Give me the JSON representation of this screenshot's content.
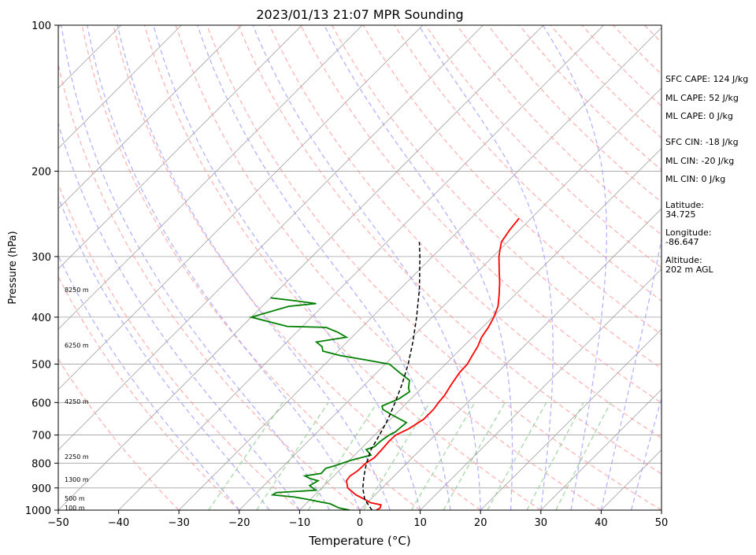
{
  "chart_data": {
    "type": "line",
    "title": "2023/01/13 21:07 MPR Sounding",
    "xlabel": "Temperature (°C)",
    "ylabel": "Pressure (hPa)",
    "xlim": [
      -50,
      50
    ],
    "ylim": [
      1000,
      100
    ],
    "y_scale": "log",
    "x_ticks": [
      -50,
      -40,
      -30,
      -20,
      -10,
      0,
      10,
      20,
      30,
      40,
      50
    ],
    "x_tick_labels": [
      "−50",
      "−40",
      "−30",
      "−20",
      "−10",
      "0",
      "10",
      "20",
      "30",
      "40",
      "50"
    ],
    "y_ticks": [
      100,
      200,
      300,
      400,
      500,
      600,
      700,
      800,
      900,
      1000
    ],
    "y_tick_labels": [
      "100",
      "200",
      "300",
      "400",
      "500",
      "600",
      "700",
      "800",
      "900",
      "1000"
    ],
    "grid": true,
    "series": [
      {
        "kind": "temperature",
        "color": "#ff0000",
        "pressure": [
          1000,
          990,
          975,
          965,
          950,
          930,
          900,
          870,
          850,
          830,
          800,
          780,
          750,
          720,
          700,
          680,
          650,
          620,
          600,
          580,
          550,
          520,
          500,
          480,
          460,
          440,
          420,
          400,
          380,
          360,
          340,
          320,
          300,
          290,
          280,
          265,
          250
        ],
        "x": [
          2.7,
          3.0,
          2.6,
          0.5,
          -1.0,
          -3.2,
          -5.7,
          -7.1,
          -7.3,
          -6.9,
          -6.8,
          -6.3,
          -6.4,
          -6.6,
          -6.5,
          -5.4,
          -4.5,
          -4.5,
          -4.8,
          -5.0,
          -5.7,
          -6.3,
          -6.4,
          -7.0,
          -7.6,
          -8.5,
          -9.0,
          -9.8,
          -10.9,
          -12.6,
          -14.5,
          -16.7,
          -19.0,
          -20.0,
          -21.0,
          -21.6,
          -22.0
        ]
      },
      {
        "kind": "dewpoint",
        "color": "#008000",
        "pressure": [
          1000,
          990,
          970,
          960,
          950,
          940,
          930,
          920,
          910,
          890,
          870,
          860,
          850,
          840,
          820,
          810,
          790,
          770,
          750,
          740,
          720,
          700,
          690,
          660,
          640,
          620,
          610,
          590,
          570,
          560,
          540,
          520,
          500,
          490,
          480,
          470,
          460,
          450,
          440,
          430,
          420,
          418,
          400,
          380,
          375,
          370,
          365
        ],
        "x": [
          -1.7,
          -3.8,
          -6.0,
          -8.3,
          -10.5,
          -13.0,
          -17.0,
          -16.8,
          -10.6,
          -12.4,
          -11.8,
          -13.6,
          -14.8,
          -12.5,
          -12.6,
          -11.5,
          -9.8,
          -7.3,
          -9.0,
          -8.1,
          -8.0,
          -7.6,
          -7.1,
          -6.8,
          -9.9,
          -12.9,
          -13.6,
          -12.0,
          -11.4,
          -12.2,
          -13.3,
          -16.3,
          -19.3,
          -23.9,
          -28.9,
          -32.5,
          -33.4,
          -35.1,
          -30.9,
          -33.1,
          -35.9,
          -42.5,
          -50.0,
          -45.6,
          -41.5,
          -45.5,
          -50.0
        ]
      },
      {
        "kind": "parcel",
        "color": "#000000",
        "style": "dashed",
        "pressure": [
          1000,
          950,
          900,
          850,
          800,
          750,
          700,
          650,
          600,
          550,
          500,
          450,
          400,
          350,
          300,
          280
        ],
        "x": [
          2.0,
          -1.0,
          -3.2,
          -5.0,
          -6.7,
          -8.2,
          -9.2,
          -10.4,
          -12.0,
          -13.9,
          -16.2,
          -19.1,
          -22.6,
          -26.8,
          -32.1,
          -34.6
        ]
      }
    ],
    "height_labels": [
      {
        "text": "100 m",
        "pressure": 989
      },
      {
        "text": "500 m",
        "pressure": 946
      },
      {
        "text": "1300 m",
        "pressure": 864
      },
      {
        "text": "2250 m",
        "pressure": 775
      },
      {
        "text": "4250 m",
        "pressure": 597
      },
      {
        "text": "6250 m",
        "pressure": 457
      },
      {
        "text": "8250 m",
        "pressure": 351
      }
    ],
    "annotations": [
      "SFC CAPE: 124 J/kg",
      "ML CAPE: 52 J/kg",
      "ML CAPE: 0 J/kg",
      "SFC CIN: -18 J/kg",
      "ML CIN: -20 J/kg",
      "ML CIN: 0 J/kg",
      "Latitude:",
      "34.725",
      "Longitude:",
      "-86.647",
      "Altitude:",
      "202 m AGL"
    ],
    "background_lines": {
      "isotherm_color": "#a0a0a0",
      "dry_adiabat_color": "#ff9999",
      "moist_adiabat_color": "#9999ff",
      "mixing_ratio_color": "#8fcf8f",
      "isobar_color": "#a0a0a0"
    }
  }
}
